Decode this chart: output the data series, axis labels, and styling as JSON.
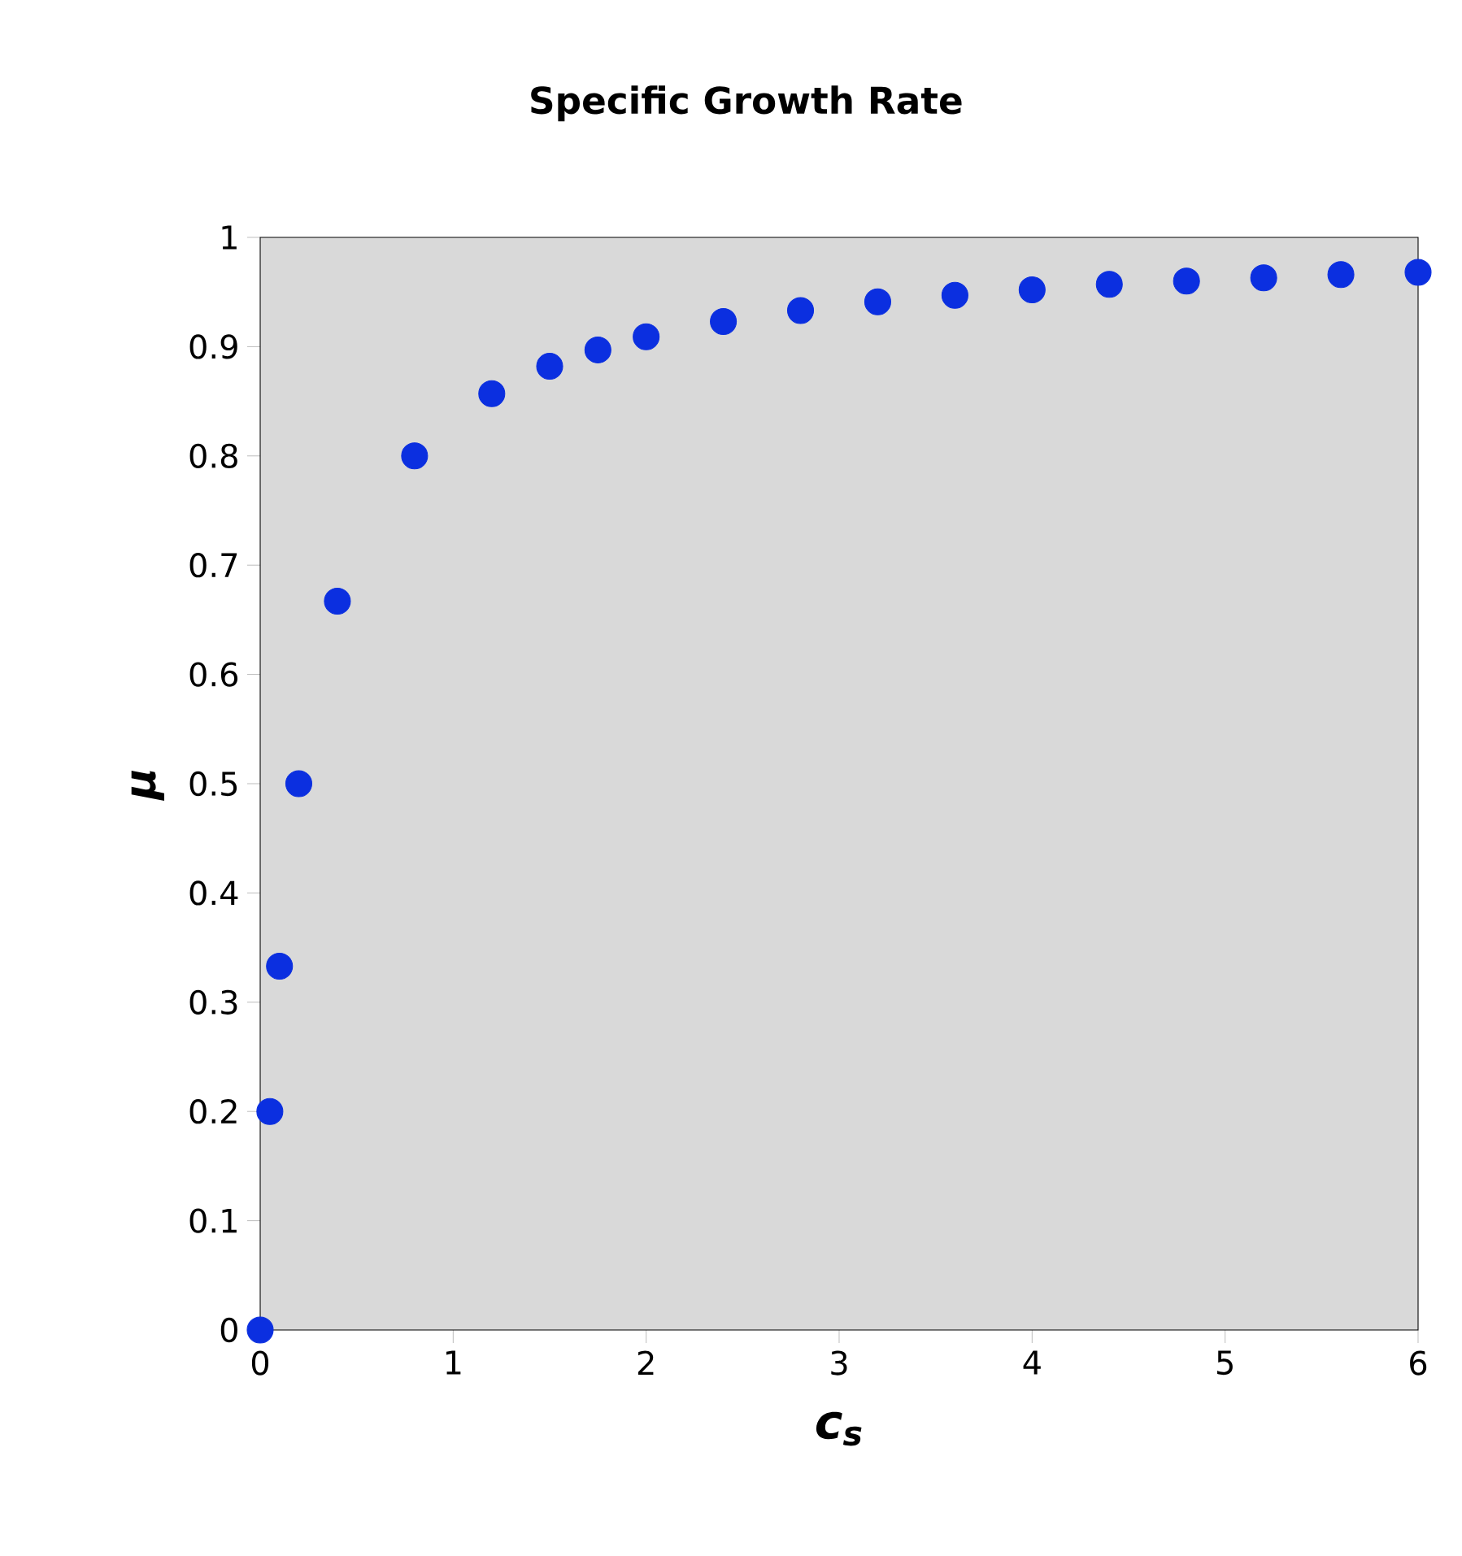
{
  "chart_data": {
    "type": "scatter",
    "title": "Specific Growth Rate",
    "xlabel": "c$_{s}$",
    "ylabel": "μ",
    "x": [
      0,
      0.05,
      0.1,
      0.2,
      0.4,
      0.8,
      1.2,
      1.5,
      1.75,
      2,
      2.4,
      2.8,
      3.2,
      3.6,
      4,
      4.4,
      4.8,
      5.2,
      5.6,
      6
    ],
    "values": [
      0,
      0.2,
      0.333,
      0.5,
      0.667,
      0.8,
      0.857,
      0.882,
      0.897,
      0.909,
      0.923,
      0.933,
      0.941,
      0.947,
      0.952,
      0.957,
      0.96,
      0.963,
      0.966,
      0.968
    ],
    "color": "#0b2fe0",
    "marker": "circle",
    "xlim": [
      0,
      6
    ],
    "xticks": [
      0,
      1,
      2,
      3,
      4,
      5,
      6
    ],
    "ylim": [
      0,
      1
    ],
    "yticks": [
      0,
      0.1,
      0.2,
      0.3,
      0.4,
      0.5,
      0.6,
      0.7,
      0.8,
      0.9,
      1
    ]
  }
}
